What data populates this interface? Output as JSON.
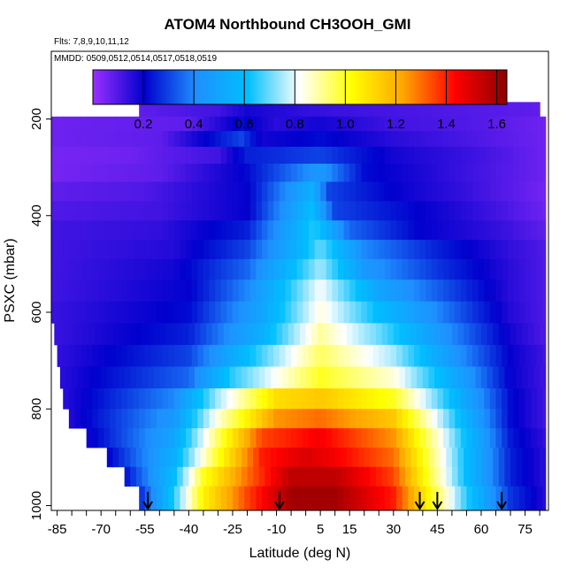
{
  "chart_data": {
    "type": "heatmap",
    "title": "ATOM4 Northbound CH3OOH_GMI",
    "notes": [
      "Flts: 7,8,9,10,11,12",
      "MMDD: 0509,0512,0514,0517,0518,0519"
    ],
    "xlabel": "Latitude (deg N)",
    "ylabel": "PSXC (mbar)",
    "xlim": [
      -87,
      83
    ],
    "ylim": [
      1010,
      60
    ],
    "x_ticks": [
      -85,
      -70,
      -55,
      -40,
      -25,
      -10,
      5,
      15,
      30,
      45,
      60,
      75
    ],
    "y_ticks": [
      1000,
      800,
      600,
      400,
      200
    ],
    "colorbar": {
      "ticks": [
        0.2,
        0.4,
        0.6,
        0.8,
        1.0,
        1.2,
        1.4,
        1.6
      ],
      "tick_labels": [
        "0.2",
        "0.4",
        "0.6",
        "0.8",
        "1.0",
        "1.2",
        "1.4",
        "1.6"
      ],
      "range": [
        0.0,
        1.64
      ],
      "colors": [
        "#9b30ff",
        "#0000cd",
        "#1e90ff",
        "#00bfff",
        "#ffffff",
        "#ffff00",
        "#ffa500",
        "#ff0000",
        "#8b0000"
      ]
    },
    "arrows_lat": [
      -54,
      -9,
      39,
      45,
      67
    ],
    "layers": [
      {
        "p": 180,
        "lat": [
          -57,
          80
        ],
        "v": [
          [
            -57,
            0.08
          ],
          [
            -30,
            0.12
          ],
          [
            -20,
            0.18
          ],
          [
            0,
            0.14
          ],
          [
            20,
            0.12
          ],
          [
            50,
            0.1
          ],
          [
            80,
            0.08
          ]
        ]
      },
      {
        "p": 210,
        "lat": [
          -87,
          82
        ],
        "v": [
          [
            -87,
            0.06
          ],
          [
            -40,
            0.08
          ],
          [
            -22,
            0.22
          ],
          [
            -10,
            0.15
          ],
          [
            5,
            0.18
          ],
          [
            30,
            0.12
          ],
          [
            55,
            0.1
          ],
          [
            82,
            0.06
          ]
        ]
      },
      {
        "p": 240,
        "lat": [
          -87,
          82
        ],
        "v": [
          [
            -87,
            0.06
          ],
          [
            -50,
            0.08
          ],
          [
            -22,
            0.3
          ],
          [
            -15,
            0.18
          ],
          [
            5,
            0.22
          ],
          [
            30,
            0.15
          ],
          [
            60,
            0.1
          ],
          [
            82,
            0.06
          ]
        ]
      },
      {
        "p": 275,
        "lat": [
          -87,
          82
        ],
        "v": [
          [
            -87,
            0.05
          ],
          [
            -60,
            0.06
          ],
          [
            -30,
            0.12
          ],
          [
            -20,
            0.25
          ],
          [
            5,
            0.3
          ],
          [
            30,
            0.18
          ],
          [
            60,
            0.12
          ],
          [
            82,
            0.06
          ]
        ]
      },
      {
        "p": 310,
        "lat": [
          -87,
          82
        ],
        "v": [
          [
            -87,
            0.05
          ],
          [
            -50,
            0.08
          ],
          [
            -22,
            0.2
          ],
          [
            5,
            0.45
          ],
          [
            20,
            0.22
          ],
          [
            50,
            0.14
          ],
          [
            82,
            0.06
          ]
        ]
      },
      {
        "p": 350,
        "lat": [
          -87,
          82
        ],
        "v": [
          [
            -87,
            0.08
          ],
          [
            -55,
            0.1
          ],
          [
            -20,
            0.2
          ],
          [
            2,
            0.55
          ],
          [
            8,
            0.3
          ],
          [
            30,
            0.2
          ],
          [
            60,
            0.12
          ],
          [
            82,
            0.05
          ]
        ]
      },
      {
        "p": 390,
        "lat": [
          -87,
          82
        ],
        "v": [
          [
            -87,
            0.1
          ],
          [
            -50,
            0.12
          ],
          [
            -20,
            0.2
          ],
          [
            2,
            0.6
          ],
          [
            10,
            0.3
          ],
          [
            40,
            0.2
          ],
          [
            65,
            0.12
          ],
          [
            82,
            0.06
          ]
        ]
      },
      {
        "p": 430,
        "lat": [
          -87,
          82
        ],
        "v": [
          [
            -87,
            0.12
          ],
          [
            -50,
            0.14
          ],
          [
            -20,
            0.25
          ],
          [
            3,
            0.65
          ],
          [
            15,
            0.35
          ],
          [
            40,
            0.2
          ],
          [
            65,
            0.14
          ],
          [
            82,
            0.08
          ]
        ]
      },
      {
        "p": 470,
        "lat": [
          -87,
          82
        ],
        "v": [
          [
            -87,
            0.12
          ],
          [
            -45,
            0.16
          ],
          [
            -20,
            0.3
          ],
          [
            0,
            0.6
          ],
          [
            5,
            0.7
          ],
          [
            20,
            0.4
          ],
          [
            45,
            0.25
          ],
          [
            70,
            0.14
          ],
          [
            82,
            0.1
          ]
        ]
      },
      {
        "p": 510,
        "lat": [
          -87,
          82
        ],
        "v": [
          [
            -87,
            0.12
          ],
          [
            -45,
            0.18
          ],
          [
            -20,
            0.35
          ],
          [
            5,
            0.75
          ],
          [
            20,
            0.45
          ],
          [
            45,
            0.28
          ],
          [
            70,
            0.15
          ],
          [
            82,
            0.1
          ]
        ]
      },
      {
        "p": 555,
        "lat": [
          -87,
          82
        ],
        "v": [
          [
            -87,
            0.12
          ],
          [
            -40,
            0.2
          ],
          [
            -20,
            0.4
          ],
          [
            5,
            0.82
          ],
          [
            25,
            0.5
          ],
          [
            50,
            0.3
          ],
          [
            70,
            0.15
          ],
          [
            82,
            0.1
          ]
        ]
      },
      {
        "p": 600,
        "lat": [
          -87,
          82
        ],
        "v": [
          [
            -87,
            0.13
          ],
          [
            -40,
            0.22
          ],
          [
            -15,
            0.5
          ],
          [
            5,
            0.85
          ],
          [
            25,
            0.6
          ],
          [
            50,
            0.35
          ],
          [
            70,
            0.16
          ],
          [
            82,
            0.1
          ]
        ]
      },
      {
        "p": 645,
        "lat": [
          -86,
          82
        ],
        "v": [
          [
            -86,
            0.13
          ],
          [
            -40,
            0.25
          ],
          [
            -15,
            0.55
          ],
          [
            5,
            0.9
          ],
          [
            25,
            0.7
          ],
          [
            50,
            0.4
          ],
          [
            70,
            0.18
          ],
          [
            82,
            0.1
          ]
        ]
      },
      {
        "p": 690,
        "lat": [
          -85,
          82
        ],
        "v": [
          [
            -85,
            0.14
          ],
          [
            -40,
            0.3
          ],
          [
            -20,
            0.6
          ],
          [
            5,
            0.95
          ],
          [
            30,
            0.75
          ],
          [
            50,
            0.45
          ],
          [
            70,
            0.2
          ],
          [
            82,
            0.12
          ]
        ]
      },
      {
        "p": 735,
        "lat": [
          -84,
          82
        ],
        "v": [
          [
            -84,
            0.15
          ],
          [
            -40,
            0.35
          ],
          [
            -25,
            0.65
          ],
          [
            5,
            1.0
          ],
          [
            30,
            0.85
          ],
          [
            55,
            0.45
          ],
          [
            70,
            0.2
          ],
          [
            82,
            0.12
          ]
        ]
      },
      {
        "p": 780,
        "lat": [
          -83,
          82
        ],
        "v": [
          [
            -83,
            0.15
          ],
          [
            -45,
            0.4
          ],
          [
            -30,
            0.75
          ],
          [
            -10,
            1.1
          ],
          [
            5,
            1.15
          ],
          [
            30,
            1.0
          ],
          [
            55,
            0.5
          ],
          [
            70,
            0.22
          ],
          [
            82,
            0.12
          ]
        ]
      },
      {
        "p": 820,
        "lat": [
          -81,
          82
        ],
        "v": [
          [
            -81,
            0.16
          ],
          [
            -45,
            0.45
          ],
          [
            -30,
            0.85
          ],
          [
            -10,
            1.25
          ],
          [
            5,
            1.3
          ],
          [
            30,
            1.15
          ],
          [
            55,
            0.55
          ],
          [
            70,
            0.22
          ],
          [
            82,
            0.12
          ]
        ]
      },
      {
        "p": 860,
        "lat": [
          -75,
          82
        ],
        "v": [
          [
            -75,
            0.18
          ],
          [
            -45,
            0.5
          ],
          [
            -30,
            0.95
          ],
          [
            -15,
            1.35
          ],
          [
            5,
            1.45
          ],
          [
            30,
            1.25
          ],
          [
            55,
            0.6
          ],
          [
            70,
            0.24
          ],
          [
            82,
            0.14
          ]
        ]
      },
      {
        "p": 900,
        "lat": [
          -68,
          82
        ],
        "v": [
          [
            -68,
            0.2
          ],
          [
            -45,
            0.55
          ],
          [
            -30,
            1.0
          ],
          [
            -15,
            1.4
          ],
          [
            0,
            1.5
          ],
          [
            10,
            1.45
          ],
          [
            30,
            1.3
          ],
          [
            55,
            0.6
          ],
          [
            70,
            0.25
          ],
          [
            82,
            0.15
          ]
        ]
      },
      {
        "p": 940,
        "lat": [
          -62,
          82
        ],
        "v": [
          [
            -62,
            0.22
          ],
          [
            -45,
            0.6
          ],
          [
            -35,
            1.0
          ],
          [
            -20,
            1.3
          ],
          [
            -5,
            1.55
          ],
          [
            10,
            1.55
          ],
          [
            30,
            1.35
          ],
          [
            55,
            0.6
          ],
          [
            70,
            0.25
          ],
          [
            82,
            0.15
          ]
        ]
      },
      {
        "p": 980,
        "lat": [
          -57,
          82
        ],
        "v": [
          [
            -57,
            0.25
          ],
          [
            -45,
            0.65
          ],
          [
            -35,
            1.05
          ],
          [
            -20,
            1.35
          ],
          [
            -5,
            1.6
          ],
          [
            10,
            1.6
          ],
          [
            30,
            1.4
          ],
          [
            55,
            0.65
          ],
          [
            70,
            0.28
          ],
          [
            82,
            0.16
          ]
        ]
      }
    ]
  }
}
